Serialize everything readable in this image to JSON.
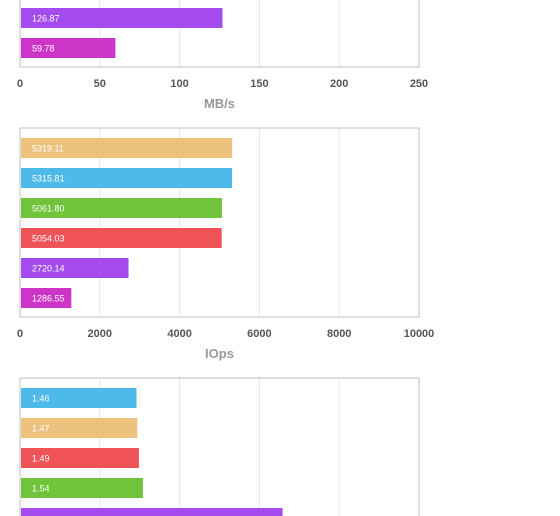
{
  "chart_data": [
    {
      "type": "bar",
      "orientation": "horizontal",
      "xlabel": "MB/s",
      "xlim": [
        0,
        250
      ],
      "xticks": [
        "0",
        "50",
        "100",
        "150",
        "200",
        "250"
      ],
      "grid": true,
      "bars": [
        {
          "value": 126.87,
          "label": "126.87",
          "color": "#a34bec"
        },
        {
          "value": 59.78,
          "label": "59.78",
          "color": "#cc35c7"
        }
      ]
    },
    {
      "type": "bar",
      "orientation": "horizontal",
      "xlabel": "IOps",
      "xlim": [
        0,
        10000
      ],
      "xticks": [
        "0",
        "2000",
        "4000",
        "6000",
        "8000",
        "10000"
      ],
      "grid": true,
      "bars": [
        {
          "value": 5319.11,
          "label": "5319.11",
          "color": "#edc27f"
        },
        {
          "value": 5315.81,
          "label": "5315.81",
          "color": "#4ebaea"
        },
        {
          "value": 5061.8,
          "label": "5061.80",
          "color": "#6fc43a"
        },
        {
          "value": 5054.03,
          "label": "5054.03",
          "color": "#ef5257"
        },
        {
          "value": 2720.14,
          "label": "2720.14",
          "color": "#a34bec"
        },
        {
          "value": 1286.55,
          "label": "1286.55",
          "color": "#cc35c7"
        }
      ]
    },
    {
      "type": "bar",
      "orientation": "horizontal",
      "xlabel": "",
      "xlim": [
        0,
        5
      ],
      "xticks": [],
      "grid": true,
      "bars": [
        {
          "value": 1.46,
          "label": "1.46",
          "color": "#4ebaea"
        },
        {
          "value": 1.47,
          "label": "1.47",
          "color": "#edc27f"
        },
        {
          "value": 1.49,
          "label": "1.49",
          "color": "#ef5257"
        },
        {
          "value": 1.54,
          "label": "1.54",
          "color": "#6fc43a"
        },
        {
          "value": 3.29,
          "label": "",
          "color": "#a34bec"
        }
      ]
    }
  ]
}
